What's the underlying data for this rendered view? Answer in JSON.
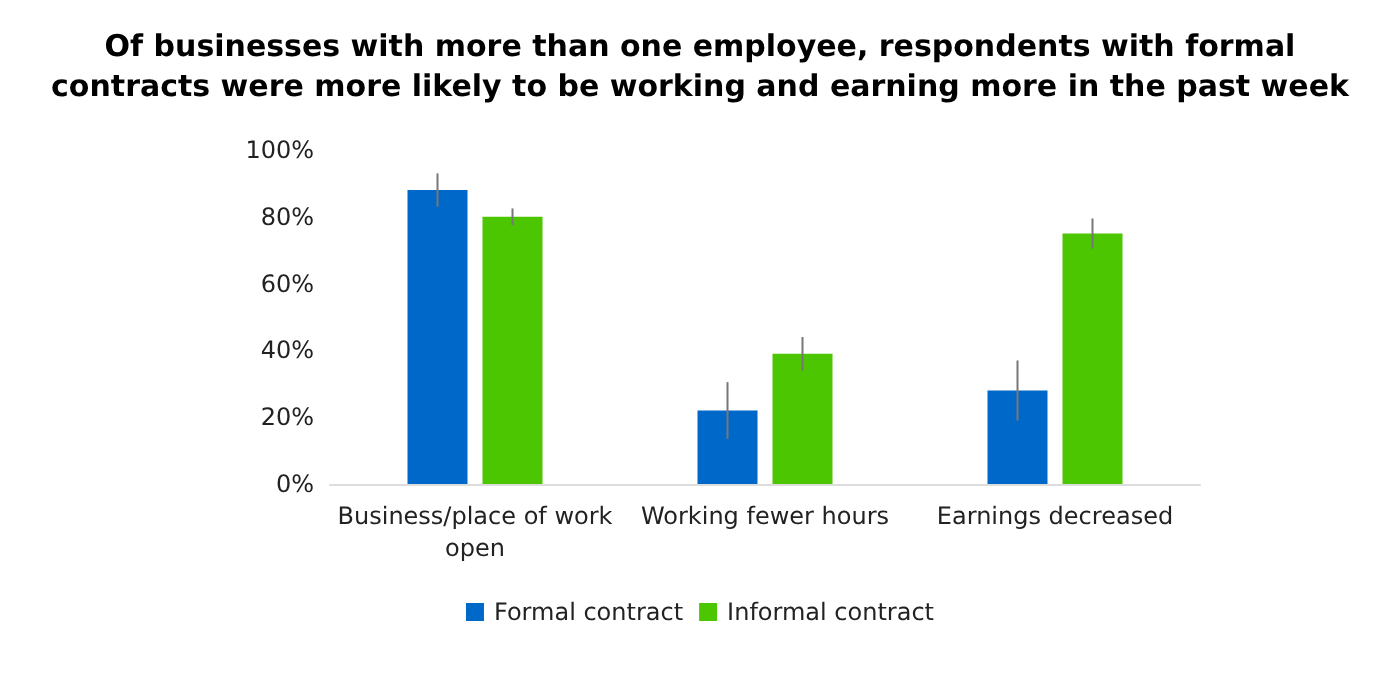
{
  "chart_data": {
    "type": "bar",
    "title": "Of businesses with more than one employee, respondents with formal\ncontracts were more likely to be working and earning more in the past week",
    "categories": [
      "Business/place of work\nopen",
      "Working fewer hours",
      "Earnings decreased"
    ],
    "series": [
      {
        "name": "Formal contract",
        "color": "#0068c8",
        "values": [
          88,
          22,
          28
        ],
        "errors": [
          5,
          8.5,
          9
        ]
      },
      {
        "name": "Informal contract",
        "color": "#4cc600",
        "values": [
          80,
          39,
          75
        ],
        "errors": [
          2.5,
          5,
          4.5
        ]
      }
    ],
    "ylim": [
      0,
      100
    ],
    "yticks": [
      {
        "value": 0,
        "label": "0%"
      },
      {
        "value": 20,
        "label": "20%"
      },
      {
        "value": 40,
        "label": "40%"
      },
      {
        "value": 60,
        "label": "60%"
      },
      {
        "value": 80,
        "label": "80%"
      },
      {
        "value": 100,
        "label": "100%"
      }
    ],
    "grid": false,
    "legend": "bottom"
  }
}
